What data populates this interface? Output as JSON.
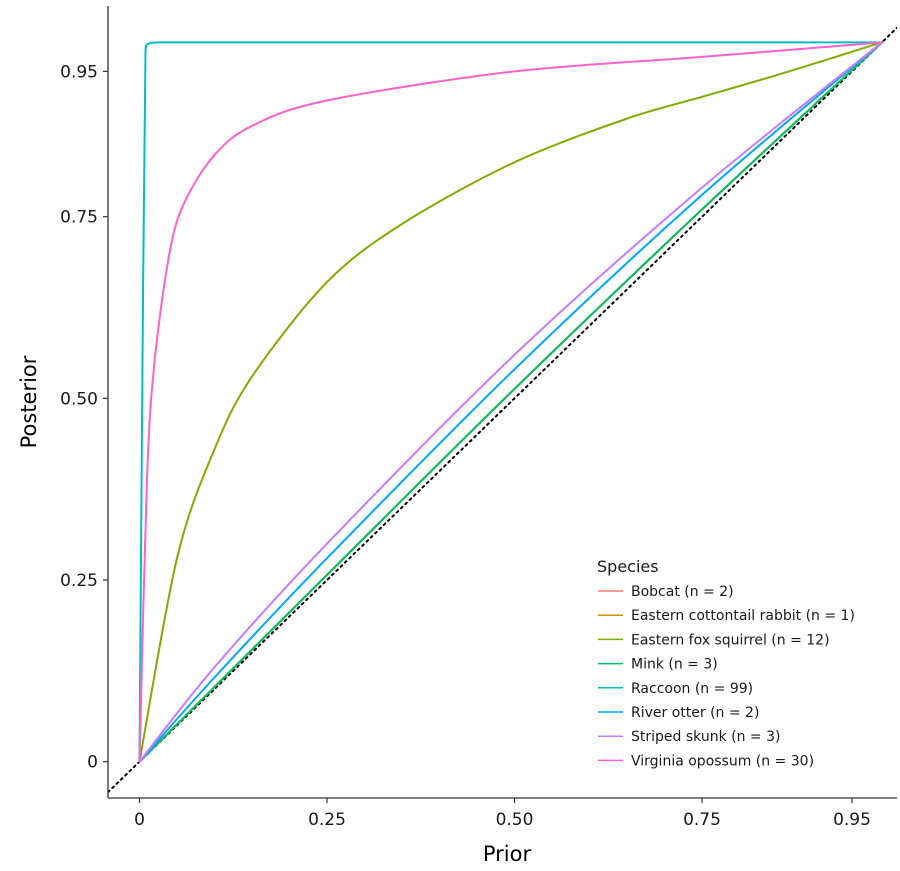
{
  "chart_data": {
    "type": "line",
    "xlabel": "Prior",
    "ylabel": "Posterior",
    "xlim": [
      -0.042,
      1.01
    ],
    "ylim": [
      -0.05,
      1.04
    ],
    "x_ticks": [
      0,
      0.25,
      0.5,
      0.75,
      0.95
    ],
    "x_tick_labels": [
      "0",
      "0.25",
      "0.50",
      "0.75",
      "0.95"
    ],
    "y_ticks": [
      0,
      0.25,
      0.5,
      0.75,
      0.95
    ],
    "y_tick_labels": [
      "0",
      "0.25",
      "0.50",
      "0.75",
      "0.95"
    ],
    "grid": false,
    "legend": {
      "title": "Species",
      "placement": "bottom-right"
    },
    "reference_line": {
      "style": "dotted",
      "color": "#000000",
      "x": [
        -0.042,
        1.01
      ],
      "y": [
        -0.042,
        1.01
      ]
    },
    "series": [
      {
        "name": "Bobcat (n = 2)",
        "color": "#F8766D",
        "x": [
          0,
          0.25,
          0.5,
          0.75,
          0.99
        ],
        "y": [
          0,
          0.257,
          0.513,
          0.76,
          0.99
        ]
      },
      {
        "name": "Eastern cottontail rabbit (n = 1)",
        "color": "#CD9600",
        "x": [
          0,
          0.25,
          0.5,
          0.75,
          0.99
        ],
        "y": [
          0,
          0.257,
          0.513,
          0.76,
          0.99
        ]
      },
      {
        "name": "Eastern fox squirrel (n = 12)",
        "color": "#7CAE00",
        "x": [
          0,
          0.05,
          0.1,
          0.15,
          0.25,
          0.35,
          0.5,
          0.65,
          0.75,
          0.85,
          0.99
        ],
        "y": [
          0,
          0.28,
          0.43,
          0.53,
          0.66,
          0.74,
          0.825,
          0.885,
          0.915,
          0.945,
          0.99
        ]
      },
      {
        "name": "Mink (n = 3)",
        "color": "#00BE67",
        "x": [
          0,
          0.25,
          0.5,
          0.75,
          0.99
        ],
        "y": [
          0,
          0.257,
          0.513,
          0.76,
          0.99
        ]
      },
      {
        "name": "Raccoon (n = 99)",
        "color": "#00BFC4",
        "x": [
          0,
          0.004,
          0.008,
          0.012,
          0.03,
          0.25,
          0.5,
          0.75,
          0.99
        ],
        "y": [
          0,
          0.55,
          0.98,
          0.988,
          0.99,
          0.99,
          0.99,
          0.99,
          0.99
        ]
      },
      {
        "name": "River otter (n = 2)",
        "color": "#00A9FF",
        "x": [
          0,
          0.1,
          0.25,
          0.5,
          0.75,
          0.99
        ],
        "y": [
          0,
          0.116,
          0.28,
          0.54,
          0.78,
          0.99
        ]
      },
      {
        "name": "Striped skunk (n = 3)",
        "color": "#C77CFF",
        "x": [
          0,
          0.1,
          0.25,
          0.5,
          0.75,
          0.99
        ],
        "y": [
          0,
          0.13,
          0.3,
          0.56,
          0.79,
          0.99
        ]
      },
      {
        "name": "Virginia opossum (n = 30)",
        "color": "#FF61CC",
        "x": [
          0,
          0.01,
          0.02,
          0.04,
          0.06,
          0.1,
          0.15,
          0.25,
          0.5,
          0.75,
          0.99
        ],
        "y": [
          0,
          0.39,
          0.55,
          0.7,
          0.77,
          0.835,
          0.875,
          0.91,
          0.95,
          0.97,
          0.99
        ]
      }
    ]
  }
}
